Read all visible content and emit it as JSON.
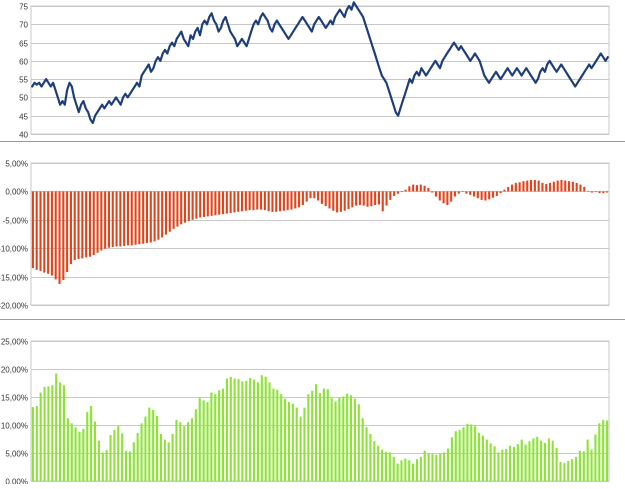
{
  "chart_data": [
    {
      "type": "line",
      "title": "",
      "xlabel": "",
      "ylabel": "",
      "ylim": [
        40,
        75
      ],
      "yticks": [
        "40",
        "45",
        "50",
        "55",
        "60",
        "65",
        "70",
        "75"
      ],
      "grid": true,
      "legend": "none",
      "color": "#1f3f7a",
      "series": [
        {
          "values": [
            53,
            54,
            53.5,
            54,
            53,
            54,
            55,
            54,
            53,
            54,
            52,
            50,
            48,
            49,
            48,
            52,
            54,
            53,
            50,
            48,
            46,
            48,
            49,
            47,
            46,
            44,
            43,
            45,
            46,
            47,
            48,
            47,
            48,
            49,
            48,
            49,
            50,
            49,
            48,
            50,
            51,
            50,
            51,
            52,
            53,
            54,
            53,
            56,
            57,
            58,
            59,
            57,
            58,
            60,
            61,
            60,
            62,
            63,
            62,
            64,
            65,
            64,
            66,
            67,
            68,
            66,
            65,
            64,
            67,
            66,
            68,
            69,
            67,
            70,
            71,
            70,
            72,
            73,
            71,
            70,
            68,
            69,
            71,
            72,
            70,
            68,
            67,
            66,
            64,
            65,
            66,
            65,
            64,
            66,
            68,
            70,
            71,
            70,
            72,
            73,
            72,
            71,
            69,
            68,
            70,
            71,
            70,
            69,
            68,
            67,
            66,
            67,
            68,
            69,
            70,
            71,
            72,
            71,
            70,
            69,
            68,
            70,
            71,
            72,
            71,
            70,
            69,
            70,
            71,
            70,
            72,
            73,
            74,
            73,
            72,
            74,
            75,
            74,
            76,
            75,
            74,
            73,
            72,
            70,
            68,
            66,
            64,
            62,
            60,
            58,
            56,
            55,
            54,
            52,
            50,
            48,
            46,
            45,
            47,
            49,
            51,
            53,
            55,
            54,
            56,
            57,
            56,
            58,
            57,
            56,
            57,
            58,
            59,
            60,
            59,
            58,
            60,
            61,
            62,
            63,
            64,
            65,
            64,
            63,
            64,
            63,
            62,
            61,
            60,
            61,
            62,
            61,
            60,
            58,
            56,
            55,
            54,
            55,
            56,
            57,
            56,
            55,
            56,
            57,
            58,
            57,
            56,
            57,
            58,
            57,
            56,
            57,
            58,
            57,
            56,
            55,
            54,
            55,
            57,
            58,
            57,
            59,
            60,
            59,
            58,
            57,
            58,
            59,
            58,
            57,
            56,
            55,
            54,
            53,
            54,
            55,
            56,
            57,
            58,
            59,
            58,
            59,
            60,
            61,
            62,
            61,
            60,
            61
          ]
        }
      ]
    },
    {
      "type": "bar",
      "title": "",
      "xlabel": "",
      "ylabel": "",
      "ylim": [
        -20,
        5
      ],
      "yticks": [
        "-20,00%",
        "-15,00%",
        "-10,00%",
        "-5,00%",
        "0,00%",
        "5,00%"
      ],
      "grid": true,
      "legend": "none",
      "color": "#e2431a",
      "series": [
        {
          "values": [
            -13.5,
            -13.8,
            -14,
            -14.3,
            -14.5,
            -14.8,
            -15.5,
            -16.3,
            -15.6,
            -14.2,
            -12.8,
            -12.1,
            -11.9,
            -11.8,
            -11.6,
            -11.5,
            -11.2,
            -10.8,
            -10.4,
            -10.1,
            -9.9,
            -9.8,
            -9.7,
            -9.7,
            -9.6,
            -9.5,
            -9.5,
            -9.4,
            -9.3,
            -9.2,
            -9.1,
            -9,
            -8.8,
            -8.5,
            -8.1,
            -7.6,
            -7.1,
            -6.6,
            -6.2,
            -5.8,
            -5.5,
            -5.2,
            -5,
            -4.8,
            -4.6,
            -4.5,
            -4.4,
            -4.3,
            -4.2,
            -4.1,
            -4,
            -3.9,
            -3.8,
            -3.7,
            -3.6,
            -3.5,
            -3.4,
            -3.3,
            -3.3,
            -3.2,
            -3.2,
            -3.3,
            -3.5,
            -3.6,
            -3.6,
            -3.5,
            -3.4,
            -3.3,
            -3.2,
            -3,
            -2.8,
            -2.4,
            -1.8,
            -1.2,
            -1.2,
            -1.6,
            -2.2,
            -2.6,
            -3,
            -3.4,
            -3.7,
            -3.6,
            -3.4,
            -3.1,
            -2.8,
            -2.5,
            -2.4,
            -2.5,
            -2.7,
            -2.6,
            -2.4,
            -2.3,
            -3.5,
            -2.5,
            -1.5,
            -0.8,
            -0.4,
            -0.1,
            0.3,
            0.9,
            1.2,
            1.1,
            1.2,
            1.0,
            0.6,
            -0.2,
            -0.9,
            -1.6,
            -2.1,
            -2.4,
            -1.8,
            -0.9,
            -0.4,
            -0.1,
            -0.4,
            -0.6,
            -0.9,
            -1.2,
            -1.5,
            -1.6,
            -1.4,
            -1.1,
            -0.8,
            -0.3,
            0.3,
            0.8,
            1.2,
            1.5,
            1.6,
            1.8,
            1.9,
            2,
            2,
            1.9,
            1.5,
            1.3,
            1.5,
            1.7,
            1.9,
            2,
            1.9,
            1.8,
            1.7,
            1.5,
            1.2,
            0.8,
            0.1,
            -0.2,
            -0.1,
            -0.3,
            -0.3,
            -0.2
          ]
        }
      ]
    },
    {
      "type": "bar",
      "title": "",
      "xlabel": "",
      "ylabel": "",
      "ylim": [
        0,
        25
      ],
      "yticks": [
        "0,00%",
        "5,00%",
        "10,00%",
        "15,00%",
        "20,00%",
        "25,00%"
      ],
      "grid": true,
      "legend": "none",
      "color": "#8ee23a",
      "series": [
        {
          "values": [
            13.2,
            13.4,
            15.8,
            16.8,
            16.9,
            17.1,
            19.2,
            17.6,
            17.1,
            11.2,
            10.3,
            9.6,
            8.8,
            9.3,
            12.3,
            13.4,
            10.6,
            7.2,
            5.1,
            5.5,
            8.2,
            9.1,
            9.8,
            8.5,
            5.4,
            5.3,
            6.9,
            8.6,
            10.3,
            11.5,
            13.1,
            12.7,
            11.6,
            8.4,
            7.4,
            6.9,
            8.4,
            10.9,
            10.5,
            9.8,
            10.5,
            11.2,
            12.8,
            14.8,
            14.4,
            14.1,
            15.8,
            15.5,
            16.2,
            16.5,
            18.3,
            18.6,
            18.3,
            18.2,
            17.8,
            17.9,
            18.4,
            18.1,
            17.6,
            18.9,
            18.6,
            17.6,
            16.5,
            16.3,
            15.5,
            14.7,
            14.1,
            13.8,
            13.1,
            11.5,
            13.1,
            15.5,
            16.1,
            17.3,
            15.7,
            16.5,
            16.4,
            14.8,
            14.2,
            14.9,
            15.1,
            15.6,
            15.3,
            14.7,
            13.7,
            11.2,
            9.6,
            8.4,
            7.1,
            6.3,
            5.6,
            5.2,
            5.1,
            4.3,
            3.1,
            3.7,
            4,
            3.7,
            3.1,
            3.9,
            4.3,
            5.4,
            4.9,
            4.8,
            4.7,
            4.9,
            5.1,
            5.8,
            7.8,
            8.9,
            9.1,
            9.6,
            10.2,
            10.1,
            9.8,
            8.6,
            8.1,
            7.4,
            6.7,
            6.2,
            5.1,
            5.6,
            5.7,
            6.3,
            6.1,
            6.6,
            7.4,
            6.5,
            7.1,
            7.6,
            7.9,
            7.2,
            6.8,
            7.6,
            7.2,
            5.9,
            3.4,
            3.2,
            3.6,
            3.9,
            4.3,
            5.4,
            5.3,
            7.4,
            5.6,
            8.3,
            10.3,
            10.9,
            10.8
          ]
        }
      ]
    }
  ]
}
